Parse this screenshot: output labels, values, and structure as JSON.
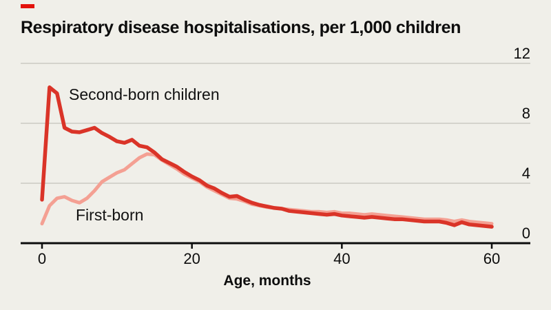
{
  "header": {
    "title": "Respiratory disease hospitalisations, per 1,000 children"
  },
  "colors": {
    "accent_red": "#e3120b",
    "background": "#f0efe9",
    "gridline": "#cbcac3",
    "axis": "#0d0d0d",
    "text": "#111111"
  },
  "chart_data": {
    "type": "line",
    "title": "Respiratory disease hospitalisations, per 1,000 children",
    "xlabel": "Age, months",
    "ylabel": "",
    "xlim": [
      0,
      60
    ],
    "ylim": [
      0,
      12
    ],
    "x_ticks": [
      0,
      20,
      40,
      60
    ],
    "y_ticks": [
      0,
      4,
      8,
      12
    ],
    "grid": "horizontal",
    "y_axis_side": "right",
    "legend_position": "inline-annotations",
    "x": [
      0,
      1,
      2,
      3,
      4,
      5,
      6,
      7,
      8,
      9,
      10,
      11,
      12,
      13,
      14,
      15,
      16,
      17,
      18,
      19,
      20,
      21,
      22,
      23,
      24,
      25,
      26,
      27,
      28,
      29,
      30,
      31,
      32,
      33,
      34,
      35,
      36,
      37,
      38,
      39,
      40,
      41,
      42,
      43,
      44,
      45,
      46,
      47,
      48,
      49,
      50,
      51,
      52,
      53,
      54,
      55,
      56,
      57,
      58,
      59,
      60
    ],
    "series": [
      {
        "name": "Second-born children",
        "color": "#da3428",
        "line_width": 5.5,
        "values": [
          2.9,
          10.4,
          10.0,
          7.7,
          7.45,
          7.4,
          7.55,
          7.7,
          7.35,
          7.1,
          6.8,
          6.7,
          6.9,
          6.5,
          6.4,
          6.05,
          5.6,
          5.35,
          5.1,
          4.75,
          4.45,
          4.2,
          3.85,
          3.65,
          3.35,
          3.1,
          3.15,
          2.9,
          2.7,
          2.55,
          2.45,
          2.35,
          2.3,
          2.15,
          2.1,
          2.05,
          2.0,
          1.95,
          1.9,
          1.95,
          1.85,
          1.8,
          1.75,
          1.7,
          1.75,
          1.7,
          1.65,
          1.6,
          1.6,
          1.55,
          1.5,
          1.45,
          1.45,
          1.45,
          1.35,
          1.2,
          1.4,
          1.25,
          1.2,
          1.15,
          1.1
        ]
      },
      {
        "name": "First-born",
        "color": "#f4a093",
        "line_width": 5,
        "values": [
          1.3,
          2.5,
          3.0,
          3.1,
          2.85,
          2.7,
          3.0,
          3.5,
          4.1,
          4.4,
          4.7,
          4.9,
          5.3,
          5.7,
          5.95,
          5.9,
          5.55,
          5.25,
          4.95,
          4.6,
          4.35,
          4.1,
          3.75,
          3.5,
          3.25,
          3.0,
          2.95,
          2.8,
          2.6,
          2.5,
          2.4,
          2.35,
          2.3,
          2.25,
          2.2,
          2.15,
          2.1,
          2.1,
          2.05,
          2.1,
          2.0,
          2.0,
          1.95,
          1.9,
          1.95,
          1.9,
          1.85,
          1.8,
          1.75,
          1.7,
          1.65,
          1.6,
          1.6,
          1.6,
          1.55,
          1.45,
          1.55,
          1.45,
          1.4,
          1.35,
          1.3
        ]
      }
    ]
  }
}
